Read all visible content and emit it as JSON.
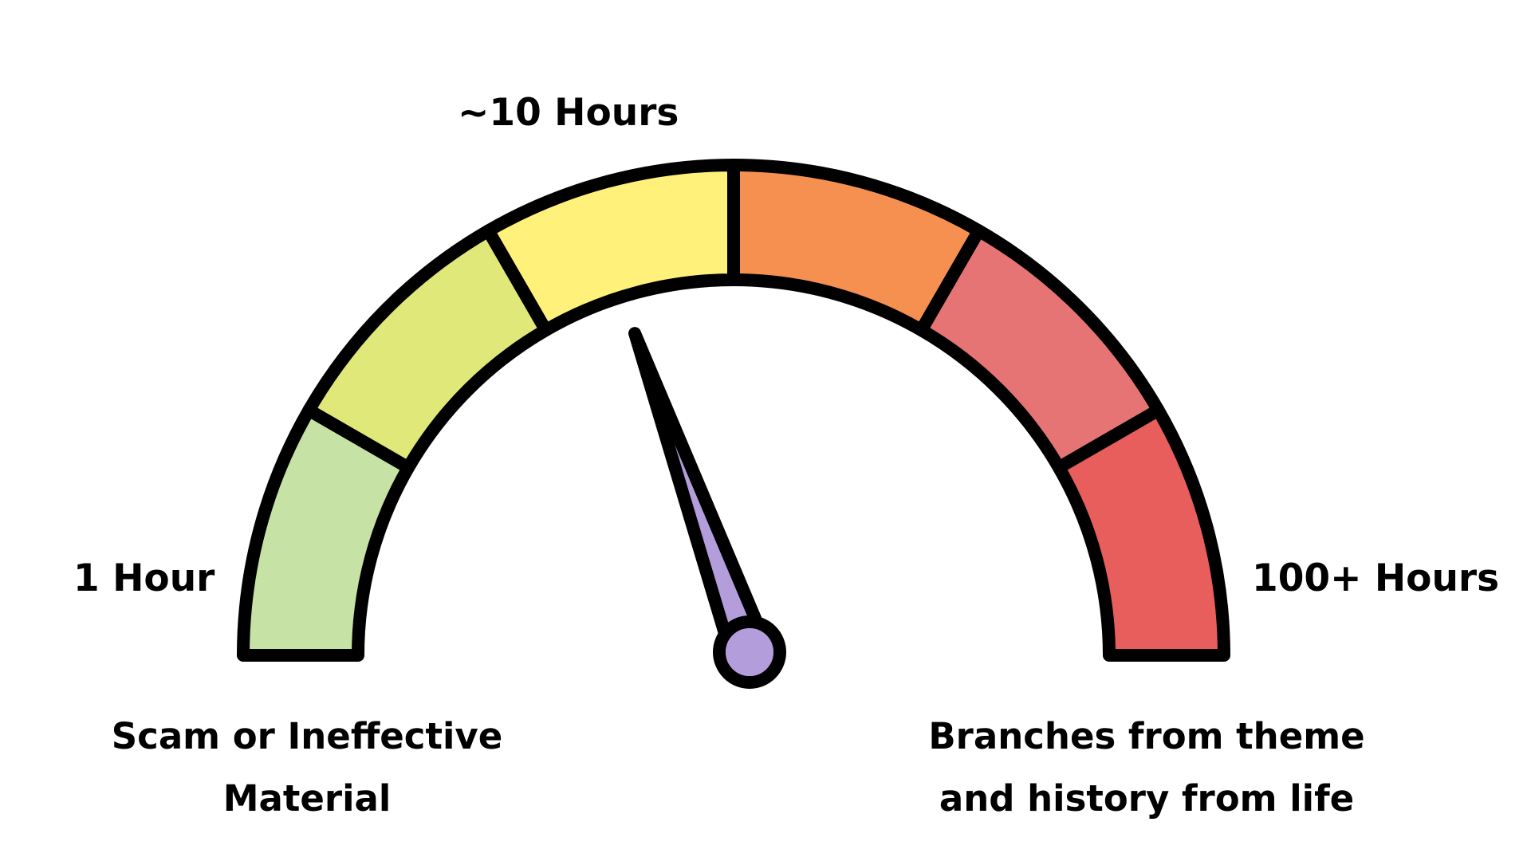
{
  "gauge": {
    "labels": {
      "min": "1 Hour",
      "mid": "~10 Hours",
      "max": "100+ Hours"
    },
    "captions": {
      "left": {
        "line1": "Scam or Ineffective",
        "line2": "Material"
      },
      "right": {
        "line1": "Branches from theme",
        "line2": "and history from life"
      }
    },
    "segments": [
      {
        "name": "segment-1",
        "color": "#c6e2a5"
      },
      {
        "name": "segment-2",
        "color": "#dfe878"
      },
      {
        "name": "segment-3",
        "color": "#fff17a"
      },
      {
        "name": "segment-4",
        "color": "#f59051"
      },
      {
        "name": "segment-5",
        "color": "#e67474"
      },
      {
        "name": "segment-6",
        "color": "#e85e5c"
      }
    ],
    "needle": {
      "color": "#b39ddb",
      "value_fraction": 0.39
    },
    "outline_color": "#000000"
  }
}
